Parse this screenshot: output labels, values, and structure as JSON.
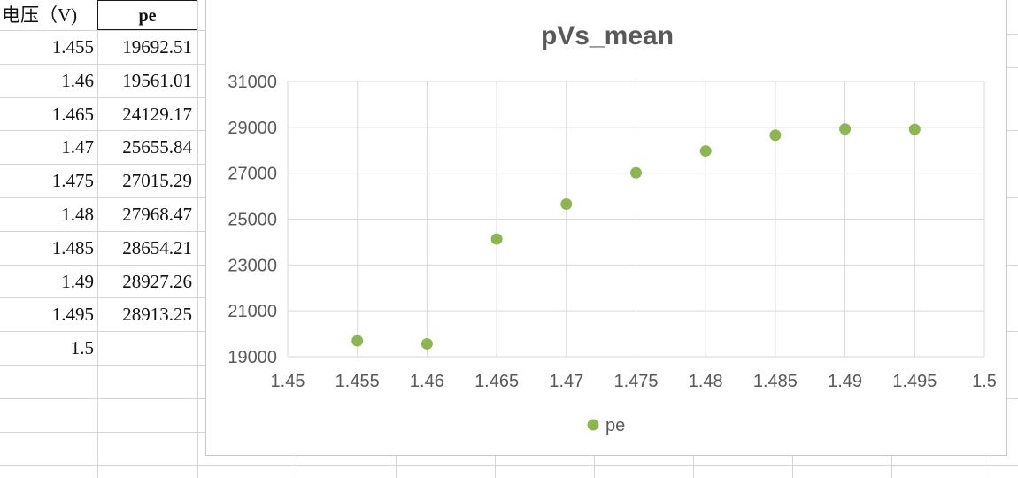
{
  "spreadsheet": {
    "headers": [
      "电压（V)",
      "pe"
    ],
    "rows": [
      {
        "voltage": "1.455",
        "pe": "19692.51"
      },
      {
        "voltage": "1.46",
        "pe": "19561.01"
      },
      {
        "voltage": "1.465",
        "pe": "24129.17"
      },
      {
        "voltage": "1.47",
        "pe": "25655.84"
      },
      {
        "voltage": "1.475",
        "pe": "27015.29"
      },
      {
        "voltage": "1.48",
        "pe": "27968.47"
      },
      {
        "voltage": "1.485",
        "pe": "28654.21"
      },
      {
        "voltage": "1.49",
        "pe": "28927.26"
      },
      {
        "voltage": "1.495",
        "pe": "28913.25"
      },
      {
        "voltage": "1.5",
        "pe": ""
      }
    ]
  },
  "colors": {
    "marker": "#8DB653",
    "grid": "#D9D9D9",
    "axis_text": "#595959",
    "title": "#404040"
  },
  "chart_data": {
    "type": "scatter",
    "title": "pVs_mean",
    "xlabel": "",
    "ylabel": "",
    "xlim": [
      1.45,
      1.5
    ],
    "ylim": [
      19000,
      31000
    ],
    "x_ticks": [
      "1.45",
      "1.455",
      "1.46",
      "1.465",
      "1.47",
      "1.475",
      "1.48",
      "1.485",
      "1.49",
      "1.495",
      "1.5"
    ],
    "y_ticks": [
      "19000",
      "21000",
      "23000",
      "25000",
      "27000",
      "29000",
      "31000"
    ],
    "grid": true,
    "legend_position": "bottom",
    "series": [
      {
        "name": "pe",
        "x": [
          1.455,
          1.46,
          1.465,
          1.47,
          1.475,
          1.48,
          1.485,
          1.49,
          1.495
        ],
        "y": [
          19692.51,
          19561.01,
          24129.17,
          25655.84,
          27015.29,
          27968.47,
          28654.21,
          28927.26,
          28913.25
        ]
      }
    ]
  }
}
